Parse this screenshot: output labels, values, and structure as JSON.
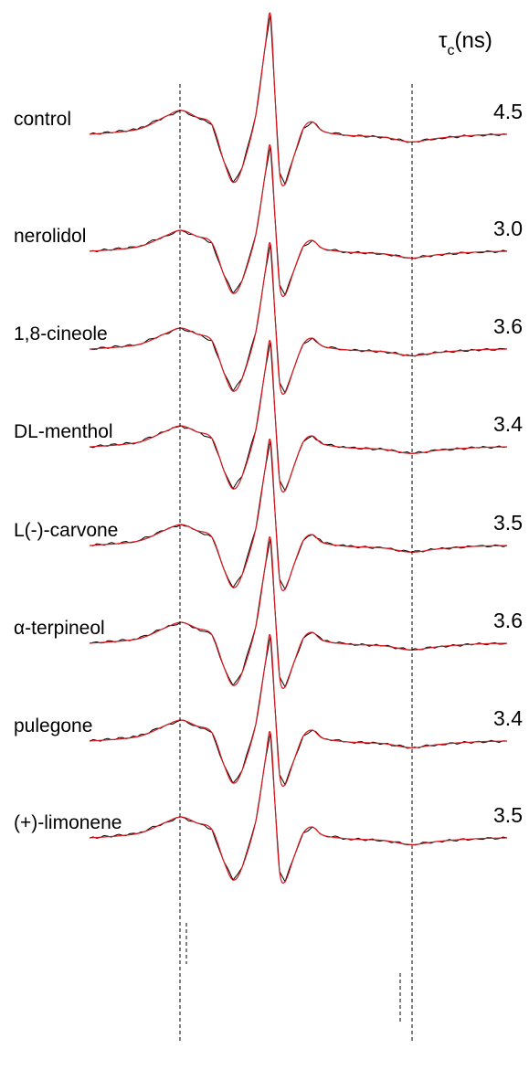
{
  "header": {
    "symbol": "τ",
    "subscript": "c",
    "unit": "(ns)"
  },
  "rows": [
    {
      "label": "control",
      "tau": "4.5"
    },
    {
      "label": "nerolidol",
      "tau": "3.0"
    },
    {
      "label": "1,8-cineole",
      "tau": "3.6"
    },
    {
      "label": "DL-menthol",
      "tau": "3.4"
    },
    {
      "label": "L(-)-carvone",
      "tau": "3.5"
    },
    {
      "label": "α-terpineol",
      "tau": "3.6"
    },
    {
      "label": "pulegone",
      "tau": "3.4"
    },
    {
      "label": "(+)-limonene",
      "tau": "3.5"
    }
  ]
}
